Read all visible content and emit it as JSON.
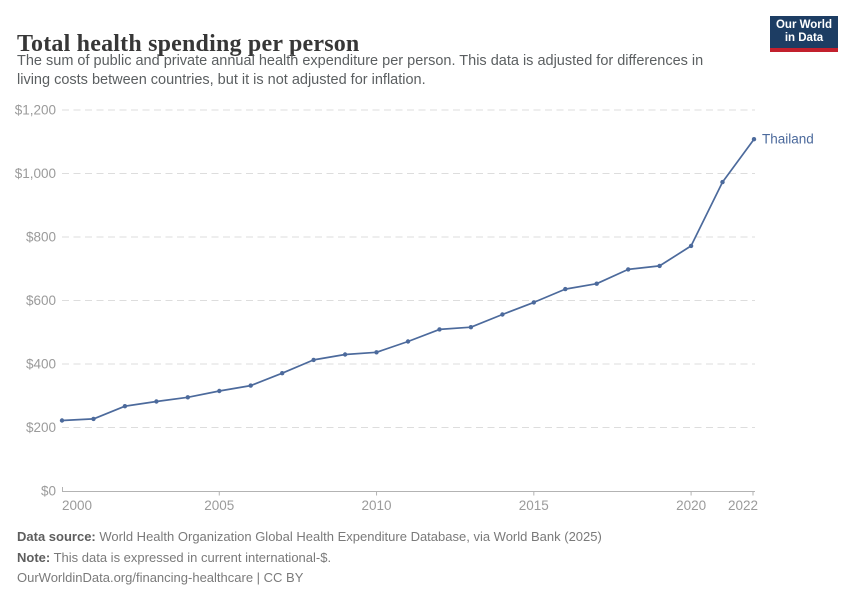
{
  "header": {
    "title": "Total health spending per person",
    "subtitle_lines": {
      "0": "The sum of public and private annual health expenditure per person. This data is adjusted for differences in",
      "1": "living costs between countries, but it is not adjusted for inflation."
    },
    "logo": {
      "line1": "Our World",
      "line2": "in Data",
      "bg_color": "#1d3d63",
      "accent_color": "#c2202d"
    }
  },
  "chart_data": {
    "type": "line",
    "title": "Total health spending per person",
    "x": [
      2000,
      2001,
      2002,
      2003,
      2004,
      2005,
      2006,
      2007,
      2008,
      2009,
      2010,
      2011,
      2012,
      2013,
      2014,
      2015,
      2016,
      2017,
      2018,
      2019,
      2020,
      2021,
      2022
    ],
    "series": [
      {
        "name": "Thailand",
        "color": "#4c6a9c",
        "values": [
          222,
          227,
          267,
          282,
          295,
          315,
          332,
          371,
          413,
          430,
          437,
          471,
          509,
          516,
          556,
          594,
          636,
          653,
          698,
          709,
          772,
          973,
          1108
        ]
      }
    ],
    "xlabel": "",
    "ylabel": "",
    "xlim": [
      2000,
      2022
    ],
    "ylim": [
      0,
      1200
    ],
    "x_tick_values": [
      2000,
      2005,
      2010,
      2015,
      2020,
      2022
    ],
    "x_tick_labels": [
      "2000",
      "2005",
      "2010",
      "2015",
      "2020",
      "2022"
    ],
    "y_tick_values": [
      0,
      200,
      400,
      600,
      800,
      1000,
      1200
    ],
    "y_tick_labels": [
      "$0",
      "$200",
      "$400",
      "$600",
      "$800",
      "$1,000",
      "$1,200"
    ],
    "grid": "horizontal-dashed",
    "legend_position": "end-of-line-label",
    "axis_color": "#b3b3b3",
    "grid_color": "#dddddd",
    "tick_label_color": "#9b9b9b"
  },
  "footer": {
    "source_label": "Data source:",
    "source_text": " World Health Organization Global Health Expenditure Database, via World Bank (2025)",
    "note_label": "Note:",
    "note_text": " This data is expressed in current international-$.",
    "link_text": "OurWorldinData.org/financing-healthcare | CC BY"
  }
}
